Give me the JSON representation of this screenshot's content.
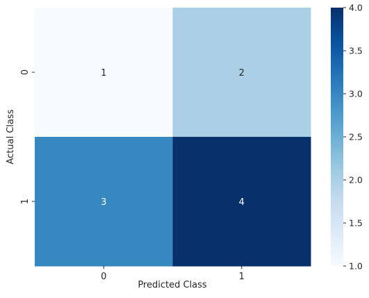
{
  "chart_data": {
    "type": "heatmap",
    "title": "",
    "xlabel": "Predicted Class",
    "ylabel": "Actual Class",
    "x_categories": [
      "0",
      "1"
    ],
    "y_categories": [
      "0",
      "1"
    ],
    "values": [
      [
        1,
        2
      ],
      [
        3,
        4
      ]
    ],
    "annotations": [
      [
        "1",
        "2"
      ],
      [
        "3",
        "4"
      ]
    ],
    "colormap": "Blues",
    "colorbar": {
      "range": [
        1.0,
        4.0
      ],
      "ticks": [
        1.0,
        1.5,
        2.0,
        2.5,
        3.0,
        3.5,
        4.0
      ],
      "tick_labels": [
        "1.0",
        "1.5",
        "2.0",
        "2.5",
        "3.0",
        "3.5",
        "4.0"
      ]
    },
    "cell_colors": [
      [
        "#f7fbff",
        "#abd0e6"
      ],
      [
        "#3787c0",
        "#08306b"
      ]
    ],
    "annotation_colors": [
      [
        "#262626",
        "#262626"
      ],
      [
        "#ffffff",
        "#ffffff"
      ]
    ],
    "grid": false
  }
}
